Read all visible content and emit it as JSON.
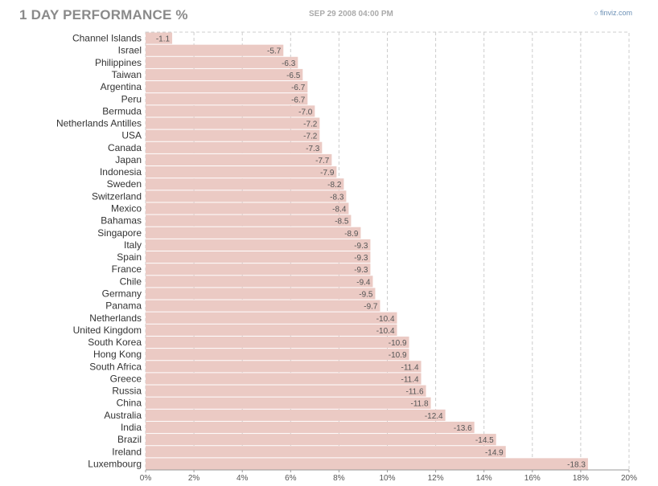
{
  "chart_data": {
    "type": "bar",
    "orientation": "horizontal",
    "title": "1 DAY PERFORMANCE %",
    "subtitle": "SEP 29 2008 04:00 PM",
    "xlim": [
      0,
      20
    ],
    "x_ticks": [
      "0%",
      "2%",
      "4%",
      "6%",
      "8%",
      "10%",
      "12%",
      "14%",
      "16%",
      "18%",
      "20%"
    ],
    "grid": true,
    "categories": [
      "Channel Islands",
      "Israel",
      "Philippines",
      "Taiwan",
      "Argentina",
      "Peru",
      "Bermuda",
      "Netherlands Antilles",
      "USA",
      "Canada",
      "Japan",
      "Indonesia",
      "Sweden",
      "Switzerland",
      "Mexico",
      "Bahamas",
      "Singapore",
      "Italy",
      "Spain",
      "France",
      "Chile",
      "Germany",
      "Panama",
      "Netherlands",
      "United Kingdom",
      "South Korea",
      "Hong Kong",
      "South Africa",
      "Greece",
      "Russia",
      "China",
      "Australia",
      "India",
      "Brazil",
      "Ireland",
      "Luxembourg"
    ],
    "values": [
      -1.1,
      -5.7,
      -6.3,
      -6.5,
      -6.7,
      -6.7,
      -7.0,
      -7.2,
      -7.2,
      -7.3,
      -7.7,
      -7.9,
      -8.2,
      -8.3,
      -8.4,
      -8.5,
      -8.9,
      -9.3,
      -9.3,
      -9.3,
      -9.4,
      -9.5,
      -9.7,
      -10.4,
      -10.4,
      -10.9,
      -10.9,
      -11.4,
      -11.4,
      -11.6,
      -11.8,
      -12.4,
      -13.6,
      -14.5,
      -14.9,
      -18.3
    ],
    "value_labels": [
      "-1.1",
      "-5.7",
      "-6.3",
      "-6.5",
      "-6.7",
      "-6.7",
      "-7.0",
      "-7.2",
      "-7.2",
      "-7.3",
      "-7.7",
      "-7.9",
      "-8.2",
      "-8.3",
      "-8.4",
      "-8.5",
      "-8.9",
      "-9.3",
      "-9.3",
      "-9.3",
      "-9.4",
      "-9.5",
      "-9.7",
      "-10.4",
      "-10.4",
      "-10.9",
      "-10.9",
      "-11.4",
      "-11.4",
      "-11.6",
      "-11.8",
      "-12.4",
      "-13.6",
      "-14.5",
      "-14.9",
      "-18.3"
    ],
    "bar_color": "#ebcac4",
    "grid_color": "#cccccc"
  },
  "brand": {
    "icon": "finviz-logo-icon",
    "text": "finviz.com"
  }
}
